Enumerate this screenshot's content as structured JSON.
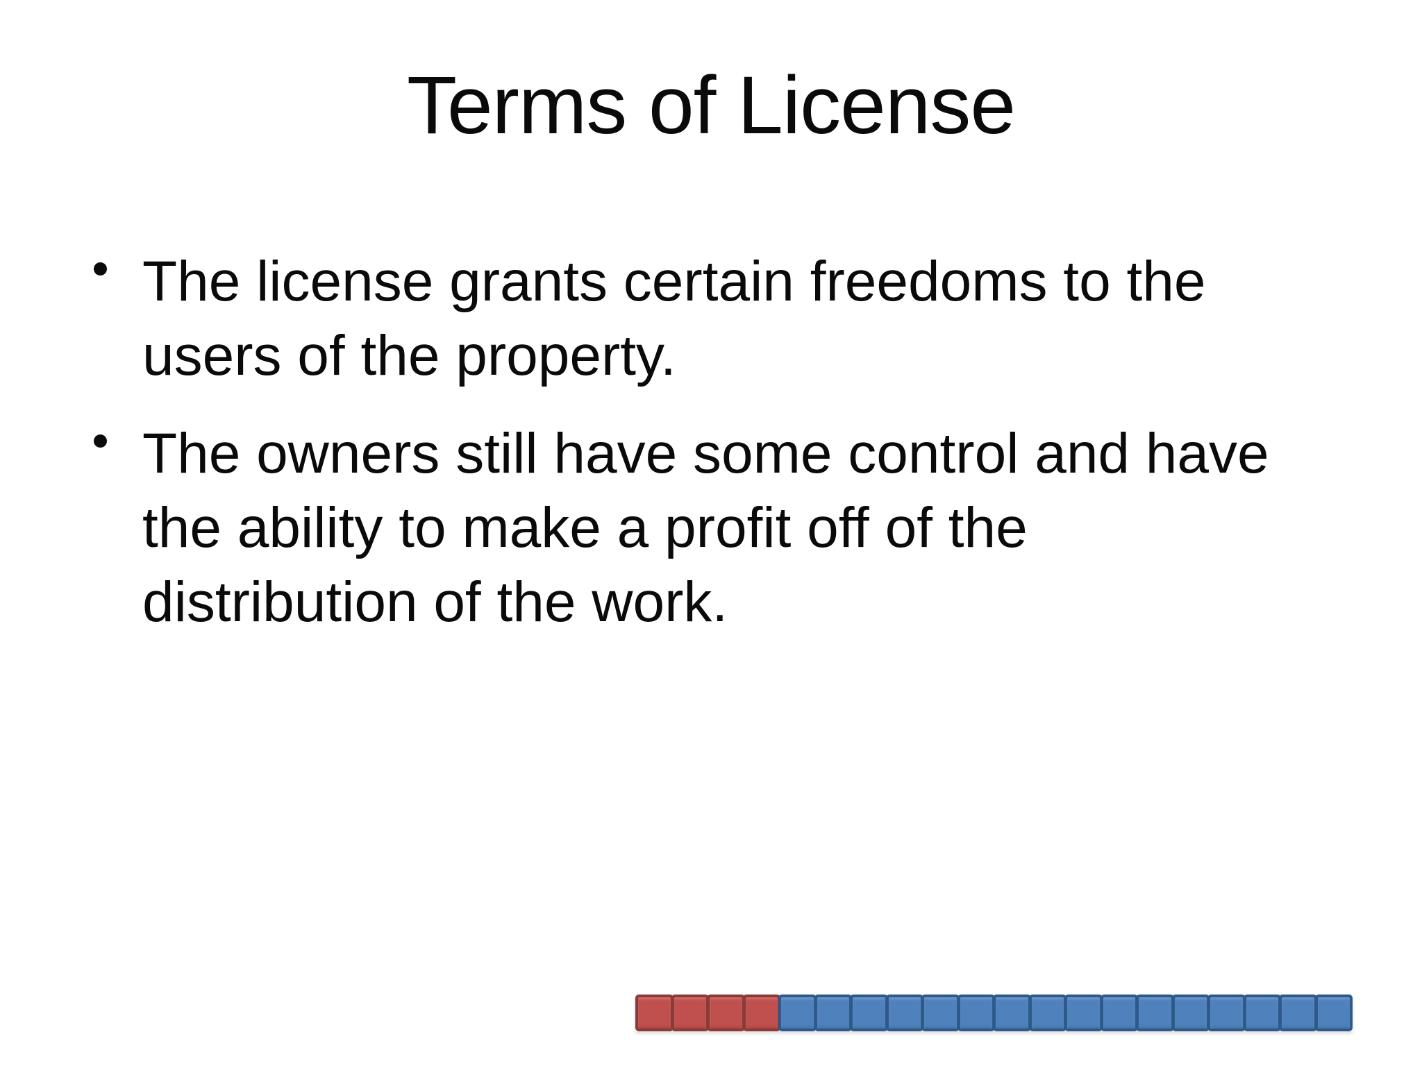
{
  "slide": {
    "title": "Terms of License",
    "bullets": [
      {
        "lines": [
          "The license grants certain freedoms to the",
          "users of the property."
        ]
      },
      {
        "lines": [
          "The owners still have some control and have",
          "the ability to make a profit off of the",
          "distribution of the work."
        ]
      }
    ],
    "text_color": "#0a0a0a",
    "background_color": "#ffffff"
  },
  "progress_bar": {
    "total_segments": 20,
    "red_segments": 4,
    "blue_segments": 16,
    "red_fill": "#c0504d",
    "red_border": "#8c3a38",
    "blue_fill": "#4f81bd",
    "blue_border": "#2e5a8b"
  }
}
